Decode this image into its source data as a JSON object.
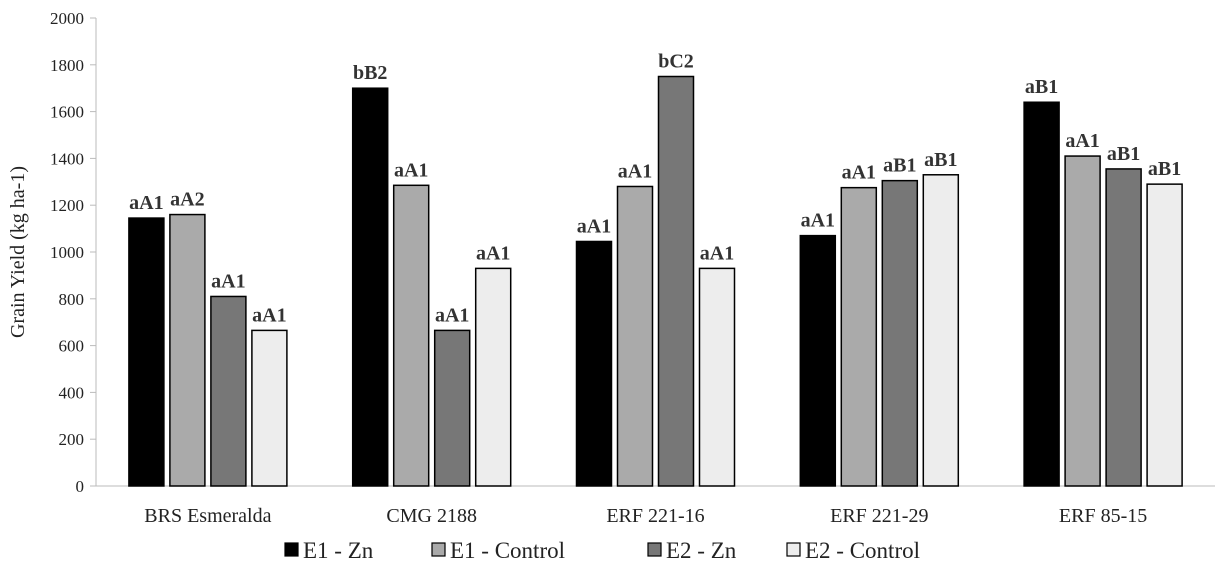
{
  "chart_data": {
    "type": "bar",
    "title": "",
    "xlabel": "",
    "ylabel": "Grain Yield (kg ha-1)",
    "ylim": [
      0,
      2000
    ],
    "yticks": [
      0,
      200,
      400,
      600,
      800,
      1000,
      1200,
      1400,
      1600,
      1800,
      2000
    ],
    "grid": false,
    "legend_position": "bottom",
    "categories": [
      "BRS Esmeralda",
      "CMG 2188",
      "ERF 221-16",
      "ERF 221-29",
      "ERF 85-15"
    ],
    "series": [
      {
        "name": "E1 - Zn",
        "color": "#000000",
        "values": [
          1145,
          1700,
          1045,
          1070,
          1640
        ],
        "labels": [
          "aA1",
          "bB2",
          "aA1",
          "aA1",
          "aB1"
        ]
      },
      {
        "name": "E1 - Control",
        "color": "#aaaaaa",
        "values": [
          1160,
          1285,
          1280,
          1275,
          1410
        ],
        "labels": [
          "aA2",
          "aA1",
          "aA1",
          "aA1",
          "aA1"
        ]
      },
      {
        "name": "E2 - Zn",
        "color": "#777777",
        "values": [
          810,
          665,
          1750,
          1305,
          1355
        ],
        "labels": [
          "aA1",
          "aA1",
          "bC2",
          "aB1",
          "aB1"
        ]
      },
      {
        "name": "E2 - Control",
        "color": "#ededed",
        "values": [
          665,
          930,
          930,
          1330,
          1290
        ],
        "labels": [
          "aA1",
          "aA1",
          "aA1",
          "aB1",
          "aB1"
        ]
      }
    ]
  }
}
